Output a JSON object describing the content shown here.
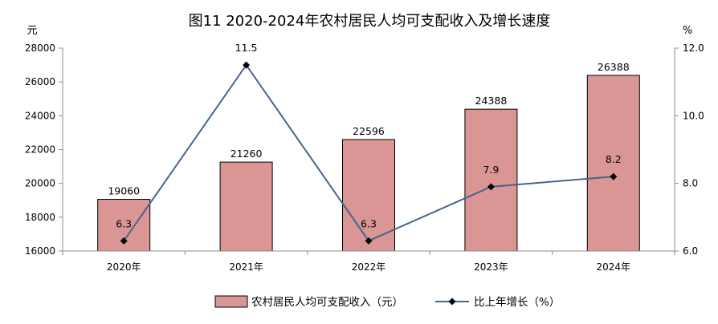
{
  "chart_data": {
    "type": "bar+line",
    "title": "图11 2020-2024年农村居民人均可支配收入及增长速度",
    "categories": [
      "2020年",
      "2021年",
      "2022年",
      "2023年",
      "2024年"
    ],
    "left_axis": {
      "unit": "元",
      "ylim": [
        16000,
        28000
      ],
      "ticks": [
        "16000",
        "18000",
        "20000",
        "22000",
        "24000",
        "26000",
        "28000"
      ]
    },
    "right_axis": {
      "unit": "%",
      "ylim": [
        6.0,
        12.0
      ],
      "ticks": [
        "6.0",
        "8.0",
        "10.0",
        "12.0"
      ]
    },
    "series": [
      {
        "name": "农村居民人均可支配收入（元）",
        "type": "bar",
        "axis": "left",
        "values": [
          19060,
          21260,
          22596,
          24388,
          26388
        ],
        "labels": [
          "19060",
          "21260",
          "22596",
          "24388",
          "26388"
        ],
        "color": "#d99694"
      },
      {
        "name": "比上年增长（%）",
        "type": "line",
        "axis": "right",
        "values": [
          6.3,
          11.5,
          6.3,
          7.9,
          8.2
        ],
        "labels": [
          "6.3",
          "11.5",
          "6.3",
          "7.9",
          "8.2"
        ],
        "color": "#44668e"
      }
    ],
    "legend_position": "bottom",
    "grid": false
  }
}
